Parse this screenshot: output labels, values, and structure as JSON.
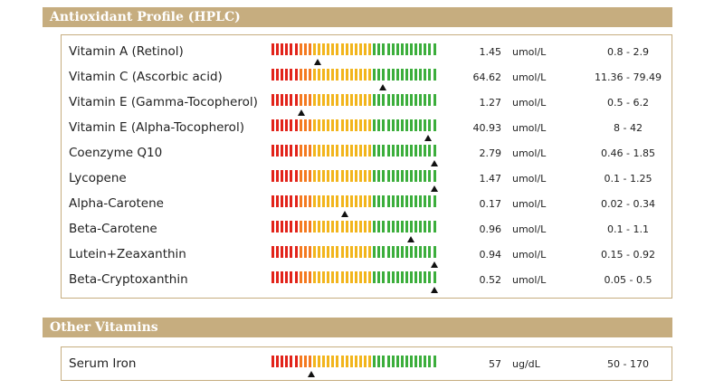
{
  "colors": {
    "header_bg": "#c6ad7f",
    "red": "#e2231a",
    "orange": "#f47a20",
    "yellow": "#f2b51c",
    "green": "#3cae3c"
  },
  "sections": [
    {
      "title": "Antioxidant Profile (HPLC)",
      "rows": [
        {
          "name": "Vitamin A (Retinol)",
          "value": "1.45",
          "unit": "umol/L",
          "range": "0.8 - 2.9",
          "marker": 0.28
        },
        {
          "name": "Vitamin C (Ascorbic acid)",
          "value": "64.62",
          "unit": "umol/L",
          "range": "11.36 - 79.49",
          "marker": 0.67
        },
        {
          "name": "Vitamin E (Gamma-Tocopherol)",
          "value": "1.27",
          "unit": "umol/L",
          "range": "0.5 - 6.2",
          "marker": 0.18
        },
        {
          "name": "Vitamin E (Alpha-Tocopherol)",
          "value": "40.93",
          "unit": "umol/L",
          "range": "8 - 42",
          "marker": 0.94
        },
        {
          "name": "Coenzyme Q10",
          "value": "2.79",
          "unit": "umol/L",
          "range": "0.46 - 1.85",
          "marker": 0.98
        },
        {
          "name": "Lycopene",
          "value": "1.47",
          "unit": "umol/L",
          "range": "0.1 - 1.25",
          "marker": 0.98
        },
        {
          "name": "Alpha-Carotene",
          "value": "0.17",
          "unit": "umol/L",
          "range": "0.02 - 0.34",
          "marker": 0.44
        },
        {
          "name": "Beta-Carotene",
          "value": "0.96",
          "unit": "umol/L",
          "range": "0.1 - 1.1",
          "marker": 0.84
        },
        {
          "name": "Lutein+Zeaxanthin",
          "value": "0.94",
          "unit": "umol/L",
          "range": "0.15 - 0.92",
          "marker": 0.98
        },
        {
          "name": "Beta-Cryptoxanthin",
          "value": "0.52",
          "unit": "umol/L",
          "range": "0.05 - 0.5",
          "marker": 0.98
        }
      ]
    },
    {
      "title": "Other Vitamins",
      "rows": [
        {
          "name": "Serum Iron",
          "value": "57",
          "unit": "ug/dL",
          "range": "50 - 170",
          "marker": 0.24
        }
      ]
    }
  ]
}
